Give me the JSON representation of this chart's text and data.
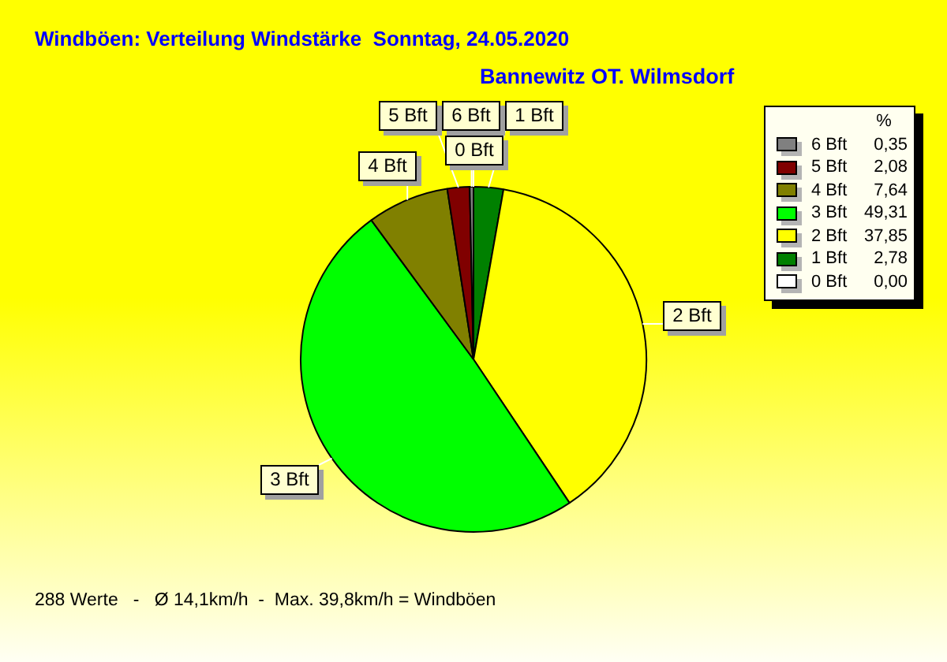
{
  "chart_data": {
    "type": "pie",
    "title": "Windböen: Verteilung Windstärke  Sonntag, 24.05.2020",
    "subtitle": "Bannewitz OT. Wilmsdorf",
    "categories": [
      "6 Bft",
      "5 Bft",
      "4 Bft",
      "3 Bft",
      "2 Bft",
      "1 Bft",
      "0 Bft"
    ],
    "values": [
      0.35,
      2.08,
      7.64,
      49.31,
      37.85,
      2.78,
      0.0
    ],
    "value_labels": [
      "0,35",
      "2,08",
      "7,64",
      "49,31",
      "37,85",
      "2,78",
      "0,00"
    ],
    "colors": [
      "#808080",
      "#800000",
      "#808000",
      "#00ff00",
      "#ffff00",
      "#008000",
      "#ffffff"
    ],
    "legend": "top right",
    "legend_title": "%",
    "annotations": [
      "288 Werte   -   Ø 14,1km/h  -  Max. 39,8km/h = Windböen"
    ]
  }
}
